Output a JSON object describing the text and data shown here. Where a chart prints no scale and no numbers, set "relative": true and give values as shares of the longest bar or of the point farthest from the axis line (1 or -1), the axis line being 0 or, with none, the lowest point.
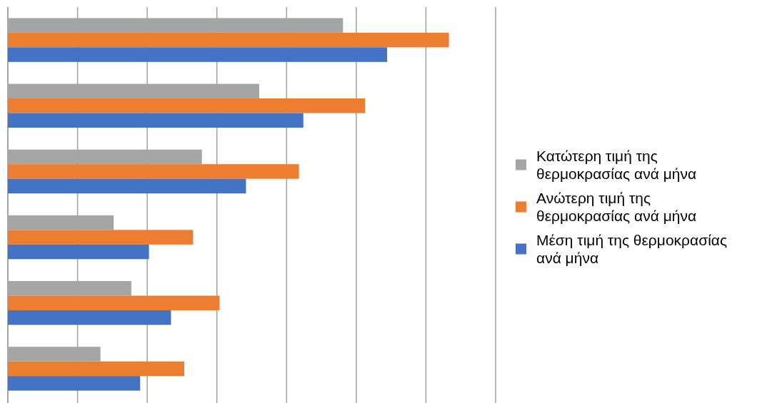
{
  "chart_data": {
    "type": "bar",
    "orientation": "horizontal",
    "relative": true,
    "categories": [
      null,
      null,
      null,
      null,
      null,
      null
    ],
    "series": [
      {
        "name": "Κατώτερη τιμή της θερμοκρασίας ανά μήνα",
        "color": "#a5a5a5",
        "values": [
          0.76,
          0.57,
          0.44,
          0.24,
          0.28,
          0.21
        ]
      },
      {
        "name": "Ανώτερη τιμή της θερμοκρασίας ανά μήνα",
        "color": "#ed7d31",
        "values": [
          1,
          0.81,
          0.66,
          0.42,
          0.48,
          0.4
        ]
      },
      {
        "name": "Μέση τιμή της θερμοκρασίας ανά μήνα",
        "color": "#4472c4",
        "values": [
          0.86,
          0.67,
          0.54,
          0.32,
          0.37,
          0.3
        ]
      }
    ],
    "grid": "x",
    "legend": "right"
  }
}
